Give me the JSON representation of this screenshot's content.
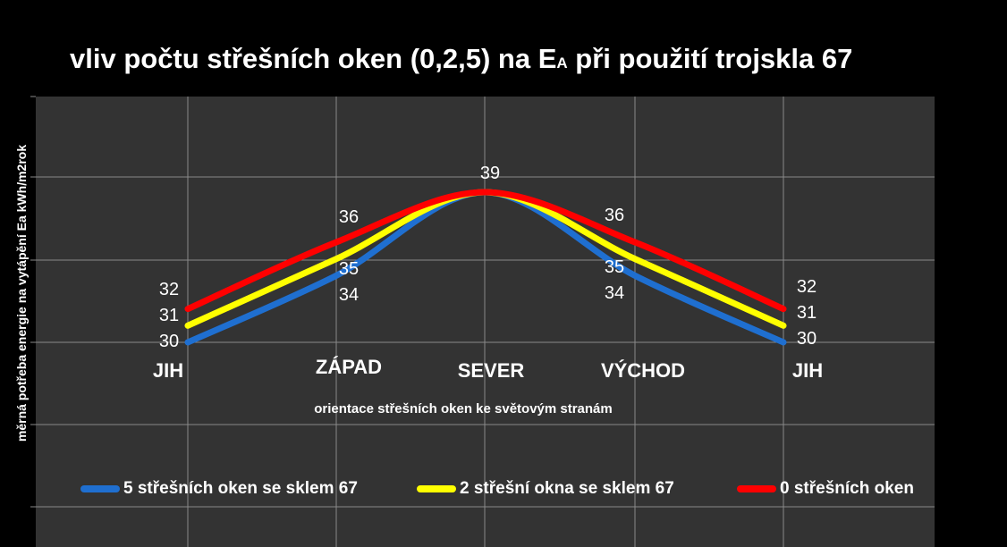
{
  "title": {
    "main": "vliv počtu střešních oken (0,2,5) na E",
    "sub": "A",
    "suffix": " při použití trojskla 67"
  },
  "chart_data": {
    "type": "line",
    "title": "vliv počtu střešních oken (0,2,5) na EA při použití trojskla 67",
    "ylabel": "měrná potřeba  energie na vytápění  Ea kWh/m2rok",
    "xlabel": "orientace  střešních oken ke světovým stranám",
    "categories": [
      "JIH",
      "ZÁPAD",
      "SEVER",
      "VÝCHOD",
      "JIH"
    ],
    "grid": true,
    "legend_position": "bottom",
    "series": [
      {
        "name": "5 střešních oken se sklem 67",
        "color": "#1f6fd0",
        "values": [
          30,
          34,
          39,
          34,
          30
        ]
      },
      {
        "name": "2 střešní okna se sklem  67",
        "color": "#ffff00",
        "values": [
          31,
          35,
          39,
          35,
          31
        ]
      },
      {
        "name": "0 střešních oken",
        "color": "#ff0000",
        "values": [
          32,
          36,
          39,
          36,
          32
        ]
      }
    ],
    "data_labels": [
      {
        "category_index": 0,
        "labels": [
          "32",
          "31",
          "30"
        ]
      },
      {
        "category_index": 1,
        "labels": [
          "36",
          "35",
          "34"
        ]
      },
      {
        "category_index": 2,
        "labels": [
          "39"
        ]
      },
      {
        "category_index": 3,
        "labels": [
          "36",
          "35",
          "34"
        ]
      },
      {
        "category_index": 4,
        "labels": [
          "32",
          "31",
          "30"
        ]
      }
    ]
  }
}
